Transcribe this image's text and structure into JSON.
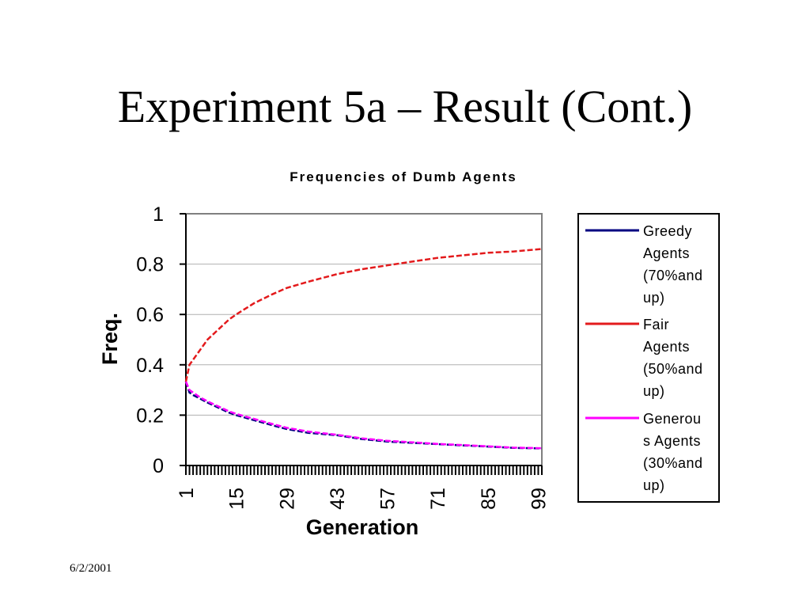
{
  "slide": {
    "title": "Experiment 5a – Result (Cont.)",
    "date": "6/2/2001"
  },
  "chart_data": {
    "type": "line",
    "title": "Frequencies of Dumb Agents",
    "xlabel": "Generation",
    "ylabel": "Freq.",
    "ylim": [
      0,
      1
    ],
    "y_ticks": [
      "0",
      "0.2",
      "0.4",
      "0.6",
      "0.8",
      "1"
    ],
    "x_ticks": [
      "1",
      "15",
      "29",
      "43",
      "57",
      "71",
      "85",
      "99"
    ],
    "x_range": [
      1,
      100
    ],
    "grid": "horizontal",
    "legend_position": "right",
    "series": [
      {
        "name": "Greedy Agents (70%and up)",
        "legend_lines": [
          "Greedy",
          "Agents",
          "(70%and",
          "up)"
        ],
        "color": "#000080",
        "x": [
          1,
          2,
          3,
          5,
          7,
          10,
          13,
          15,
          20,
          25,
          29,
          35,
          43,
          50,
          57,
          64,
          71,
          78,
          85,
          92,
          100
        ],
        "y": [
          0.333,
          0.29,
          0.28,
          0.265,
          0.25,
          0.23,
          0.21,
          0.2,
          0.18,
          0.16,
          0.145,
          0.13,
          0.12,
          0.105,
          0.095,
          0.09,
          0.085,
          0.08,
          0.075,
          0.07,
          0.068
        ]
      },
      {
        "name": "Fair Agents (50%and up)",
        "legend_lines": [
          "Fair",
          "Agents",
          "(50%and",
          "up)"
        ],
        "color": "#e31a1c",
        "x": [
          1,
          2,
          3,
          5,
          7,
          10,
          13,
          15,
          20,
          25,
          29,
          35,
          43,
          50,
          57,
          64,
          71,
          78,
          85,
          92,
          100
        ],
        "y": [
          0.333,
          0.4,
          0.42,
          0.46,
          0.5,
          0.54,
          0.58,
          0.6,
          0.645,
          0.68,
          0.705,
          0.73,
          0.76,
          0.78,
          0.795,
          0.81,
          0.825,
          0.835,
          0.845,
          0.85,
          0.86
        ]
      },
      {
        "name": "Generous Agents (30%and up)",
        "legend_lines": [
          "Generou",
          "s Agents",
          "(30%and",
          "up)"
        ],
        "color": "#ff00ff",
        "x": [
          1,
          2,
          3,
          5,
          7,
          10,
          13,
          15,
          20,
          25,
          29,
          35,
          43,
          50,
          57,
          64,
          71,
          78,
          85,
          92,
          100
        ],
        "y": [
          0.333,
          0.3,
          0.29,
          0.27,
          0.255,
          0.235,
          0.215,
          0.205,
          0.185,
          0.165,
          0.15,
          0.135,
          0.122,
          0.108,
          0.098,
          0.092,
          0.086,
          0.081,
          0.076,
          0.071,
          0.069
        ]
      }
    ]
  }
}
